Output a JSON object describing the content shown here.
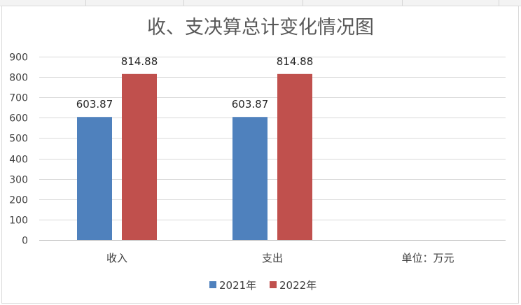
{
  "chart_data": {
    "type": "bar",
    "title": "收、支决算总计变化情况图",
    "categories": [
      "收入",
      "支出",
      "单位：万元"
    ],
    "series": [
      {
        "name": "2021年",
        "values": [
          603.87,
          603.87,
          null
        ],
        "labels": [
          "603.87",
          "603.87",
          ""
        ],
        "color": "#4f81bd"
      },
      {
        "name": "2022年",
        "values": [
          814.88,
          814.88,
          null
        ],
        "labels": [
          "814.88",
          "814.88",
          ""
        ],
        "color": "#c0504d"
      }
    ],
    "ylim": [
      0,
      900
    ],
    "yticks": [
      0,
      100,
      200,
      300,
      400,
      500,
      600,
      700,
      800,
      900
    ],
    "grid": true,
    "legend": "bottom"
  }
}
